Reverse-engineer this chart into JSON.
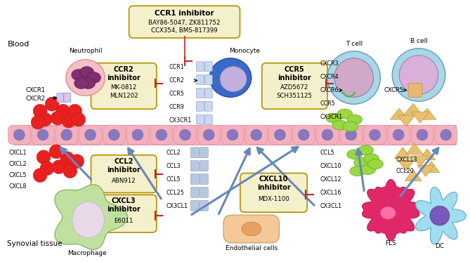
{
  "bg_color": "#ffffff",
  "blood_label": "Blood",
  "synovial_label": "Synovial tissue",
  "endothelial_label": "Endothelial cells",
  "macrophage_label": "Macrophage",
  "FLS_label": "FLS",
  "DC_label": "DC",
  "box_fc": "#f5f0cc",
  "box_ec": "#b8960a",
  "cell_row_fc": "#f5c0c8",
  "cell_row_ec": "#d89098",
  "cell_nucleus_fc": "#8878c0",
  "arrow_color": "#6688bb",
  "tbar_color": "#cc2020",
  "rbc_color": "#e82020",
  "green_oval_color": "#98d840",
  "tan_tri_color": "#e8c070"
}
